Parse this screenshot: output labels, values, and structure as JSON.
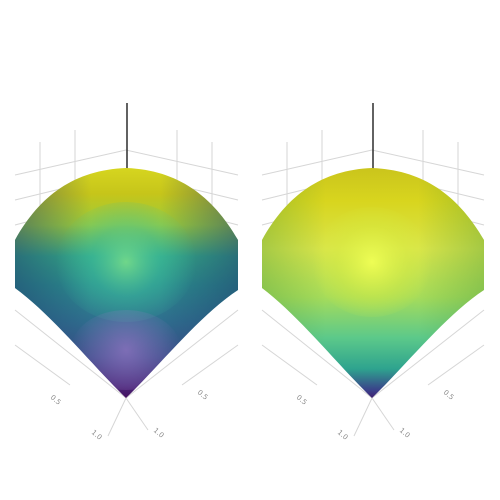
{
  "chart_data": [
    {
      "type": "surface",
      "colorscale": "viridis",
      "panel": "left",
      "shape": "dome",
      "value_range": [
        0,
        1
      ],
      "x_ticks": [
        "0.5",
        "1.0"
      ],
      "y_ticks": [
        "0.5",
        "1.0"
      ],
      "grid": true
    },
    {
      "type": "surface",
      "colorscale": "viridis",
      "panel": "right",
      "shape": "dome",
      "value_range": [
        0,
        1
      ],
      "x_ticks": [
        "0.5",
        "1.0"
      ],
      "y_ticks": [
        "0.5",
        "1.0"
      ],
      "grid": true
    }
  ]
}
